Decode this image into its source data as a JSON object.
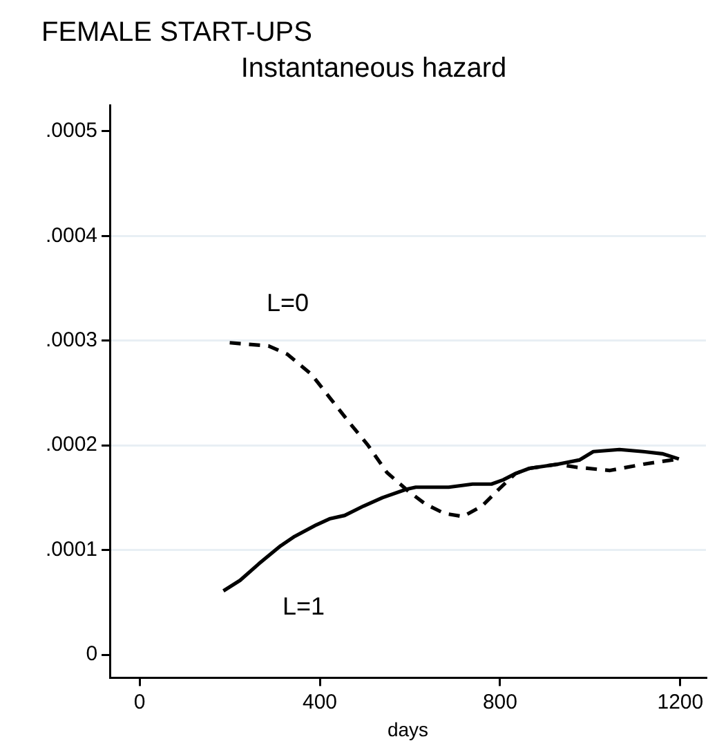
{
  "chart_data": {
    "type": "line",
    "title": "FEMALE START-UPS",
    "subtitle": "Instantaneous hazard",
    "xlabel": "days",
    "xlim": [
      -66,
      1257
    ],
    "xticks": [
      0,
      400,
      800,
      1200
    ],
    "ylim": [
      -2.2e-05,
      0.000525
    ],
    "yticks": [
      {
        "value": 0,
        "label": "0"
      },
      {
        "value": 0.0001,
        "label": ".0001"
      },
      {
        "value": 0.0002,
        "label": ".0002"
      },
      {
        "value": 0.0003,
        "label": ".0003"
      },
      {
        "value": 0.0004,
        "label": ".0004"
      },
      {
        "value": 0.0005,
        "label": ".0005"
      }
    ],
    "grid": "y",
    "legend": false,
    "marker": "none",
    "series": [
      {
        "name": "L=0",
        "color": "#000000",
        "line_style": "dashed",
        "x": [
          200,
          286,
          328,
          381,
          423,
          465,
          507,
          549,
          597,
          634,
          676,
          718,
          760,
          797,
          834,
          865,
          928,
          971,
          1044,
          1118,
          1197
        ],
        "values": [
          0.000298,
          0.000295,
          0.000287,
          0.000268,
          0.000245,
          0.000222,
          0.0002,
          0.000174,
          0.000156,
          0.000144,
          0.000135,
          0.000132,
          0.000142,
          0.000158,
          0.000173,
          0.000178,
          0.000182,
          0.000179,
          0.000176,
          0.000182,
          0.000187
        ]
      },
      {
        "name": "L=1",
        "color": "#000000",
        "line_style": "solid",
        "x": [
          186,
          223,
          265,
          313,
          344,
          392,
          423,
          455,
          497,
          539,
          592,
          613,
          686,
          739,
          781,
          807,
          834,
          865,
          928,
          976,
          1007,
          1065,
          1118,
          1160,
          1197
        ],
        "values": [
          6.1e-05,
          7.1e-05,
          8.7e-05,
          0.000104,
          0.000113,
          0.000124,
          0.00013,
          0.000133,
          0.000142,
          0.00015,
          0.000158,
          0.00016,
          0.00016,
          0.000163,
          0.000163,
          0.000167,
          0.000173,
          0.000178,
          0.000182,
          0.000186,
          0.000194,
          0.000196,
          0.000194,
          0.000192,
          0.000187
        ]
      }
    ]
  }
}
